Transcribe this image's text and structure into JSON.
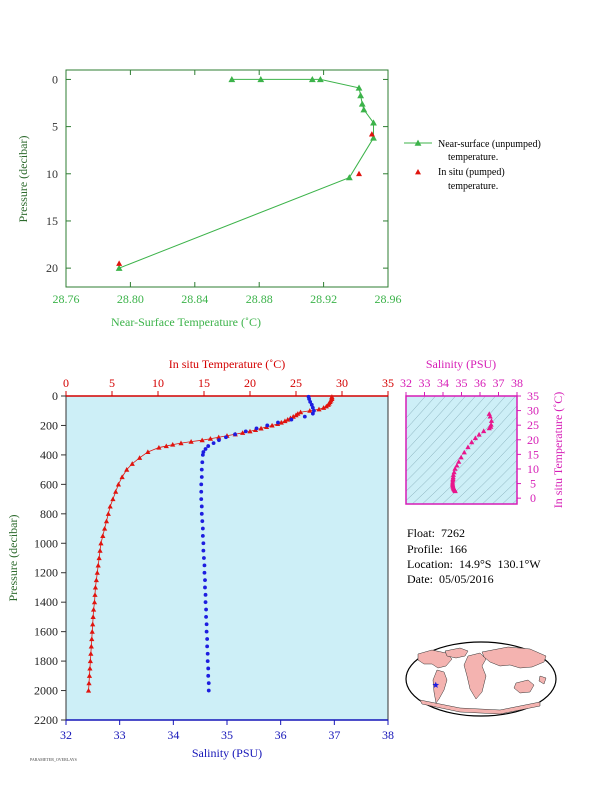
{
  "footer_text": "PARAMETER_OVERLAYS",
  "float_info": {
    "float": "Float:  7262",
    "profile": "Profile:  166",
    "location": "Location:  14.9°S  130.1°W",
    "date": "Date:  05/05/2016"
  },
  "colors": {
    "near_surface": "#3cb34a",
    "in_situ": "#e0140e",
    "salinity": "#1d1de0",
    "ts_points": "#e8158c",
    "magenta_axis": "#d61db6",
    "plot_bg": "#cdeff7",
    "axis_green": "#3cb34a",
    "axis_red": "#d40000",
    "axis_blue": "#1515b8",
    "axis_dark": "#222222"
  },
  "chart_data": [
    {
      "type": "line",
      "xlabel": "Near-Surface Temperature (˚C)",
      "ylabel": "Pressure (decibar)",
      "xlim": [
        28.76,
        28.96
      ],
      "ylim": [
        22,
        -1
      ],
      "x_ticks": [
        "28.76",
        "28.80",
        "28.84",
        "28.88",
        "28.92",
        "28.96"
      ],
      "x_tick_values": [
        28.76,
        28.8,
        28.84,
        28.88,
        28.92,
        28.96
      ],
      "y_ticks": [
        "0",
        "5",
        "10",
        "15",
        "20"
      ],
      "y_tick_values": [
        0,
        5,
        10,
        15,
        20
      ],
      "legend_position": "right",
      "series": [
        {
          "name": "Near-surface (unpumped) temperature.",
          "legend_lines": [
            "Near-surface (unpumped)",
            "temperature."
          ],
          "marker": "triangle",
          "points": [
            [
              28.863,
              0.0
            ],
            [
              28.881,
              0.0
            ],
            [
              28.913,
              0.0
            ],
            [
              28.918,
              0.0
            ],
            [
              28.942,
              0.9
            ],
            [
              28.943,
              1.7
            ],
            [
              28.944,
              2.6
            ],
            [
              28.945,
              3.2
            ],
            [
              28.951,
              4.6
            ],
            [
              28.951,
              6.2
            ],
            [
              28.936,
              10.4
            ],
            [
              28.793,
              20.0
            ]
          ]
        },
        {
          "name": "In situ (pumped) temperature.",
          "legend_lines": [
            "In situ (pumped)",
            "temperature."
          ],
          "marker": "triangle",
          "points": [
            [
              28.95,
              5.8
            ],
            [
              28.942,
              10.0
            ],
            [
              28.793,
              19.5
            ]
          ]
        }
      ]
    },
    {
      "type": "scatter",
      "top_xlabel": "In situ Temperature (˚C)",
      "bottom_xlabel": "Salinity (PSU)",
      "ylabel": "Pressure (decibar)",
      "temperature_xlim": [
        0,
        35
      ],
      "salinity_xlim": [
        32,
        38
      ],
      "ylim": [
        2200,
        0
      ],
      "temperature_ticks": [
        "0",
        "5",
        "10",
        "15",
        "20",
        "25",
        "30",
        "35"
      ],
      "temperature_tick_values": [
        0,
        5,
        10,
        15,
        20,
        25,
        30,
        35
      ],
      "salinity_ticks": [
        "32",
        "33",
        "34",
        "35",
        "36",
        "37",
        "38"
      ],
      "salinity_tick_values": [
        32,
        33,
        34,
        35,
        36,
        37,
        38
      ],
      "y_ticks": [
        "0",
        "200",
        "400",
        "600",
        "800",
        "1000",
        "1200",
        "1400",
        "1600",
        "1800",
        "2000",
        "2200"
      ],
      "y_tick_values": [
        0,
        200,
        400,
        600,
        800,
        1000,
        1200,
        1400,
        1600,
        1800,
        2000,
        2200
      ],
      "temperature": {
        "pressure": [
          5,
          10,
          20,
          30,
          40,
          50,
          60,
          70,
          80,
          90,
          100,
          110,
          120,
          130,
          140,
          150,
          160,
          170,
          180,
          190,
          200,
          210,
          220,
          230,
          240,
          250,
          260,
          270,
          280,
          290,
          300,
          310,
          320,
          330,
          340,
          350,
          380,
          420,
          460,
          500,
          550,
          600,
          650,
          700,
          750,
          800,
          850,
          900,
          950,
          1000,
          1050,
          1100,
          1150,
          1200,
          1250,
          1300,
          1350,
          1400,
          1450,
          1500,
          1550,
          1600,
          1650,
          1700,
          1750,
          1800,
          1850,
          1900,
          1950,
          2000
        ],
        "values": [
          28.9,
          28.9,
          28.9,
          28.8,
          28.7,
          28.6,
          28.5,
          28.3,
          28.0,
          27.5,
          26.5,
          25.5,
          25.2,
          25.0,
          24.7,
          24.4,
          24.1,
          23.8,
          23.4,
          23.0,
          22.4,
          21.8,
          21.2,
          20.6,
          20.0,
          19.2,
          18.4,
          17.5,
          16.6,
          15.7,
          14.8,
          13.6,
          12.5,
          11.6,
          10.9,
          10.1,
          8.9,
          8.0,
          7.2,
          6.6,
          6.1,
          5.7,
          5.4,
          5.1,
          4.8,
          4.6,
          4.4,
          4.2,
          4.0,
          3.8,
          3.7,
          3.6,
          3.5,
          3.4,
          3.3,
          3.2,
          3.15,
          3.1,
          3.0,
          2.95,
          2.9,
          2.85,
          2.8,
          2.75,
          2.7,
          2.65,
          2.6,
          2.55,
          2.5,
          2.45
        ]
      },
      "salinity": {
        "pressure": [
          5,
          20,
          40,
          60,
          80,
          100,
          120,
          140,
          160,
          180,
          200,
          220,
          240,
          260,
          280,
          300,
          320,
          340,
          360,
          380,
          400,
          450,
          500,
          550,
          600,
          650,
          700,
          750,
          800,
          850,
          900,
          950,
          1000,
          1050,
          1100,
          1150,
          1200,
          1250,
          1300,
          1350,
          1400,
          1450,
          1500,
          1550,
          1600,
          1650,
          1700,
          1750,
          1800,
          1850,
          1900,
          1950,
          2000
        ],
        "values": [
          36.52,
          36.53,
          36.55,
          36.58,
          36.6,
          36.62,
          36.6,
          36.45,
          36.2,
          35.95,
          35.75,
          35.55,
          35.35,
          35.15,
          34.98,
          34.85,
          34.75,
          34.65,
          34.6,
          34.56,
          34.55,
          34.54,
          34.53,
          34.53,
          34.52,
          34.52,
          34.52,
          34.53,
          34.53,
          34.54,
          34.55,
          34.55,
          34.56,
          34.56,
          34.57,
          34.58,
          34.58,
          34.59,
          34.59,
          34.6,
          34.6,
          34.61,
          34.61,
          34.62,
          34.62,
          34.63,
          34.63,
          34.64,
          34.64,
          34.65,
          34.65,
          34.66,
          34.66
        ]
      }
    },
    {
      "type": "scatter",
      "xlabel": "Salinity (PSU)",
      "ylabel": "In situ Temperature (˚C)",
      "xlim": [
        32,
        38
      ],
      "ylim": [
        -2,
        35
      ],
      "x_ticks": [
        "32",
        "33",
        "34",
        "35",
        "36",
        "37",
        "38"
      ],
      "x_tick_values": [
        32,
        33,
        34,
        35,
        36,
        37,
        38
      ],
      "y_ticks": [
        "0",
        "5",
        "10",
        "15",
        "20",
        "25",
        "30",
        "35"
      ],
      "y_tick_values": [
        0,
        5,
        10,
        15,
        20,
        25,
        30,
        35
      ],
      "points": [
        [
          36.5,
          28.9
        ],
        [
          36.55,
          28.0
        ],
        [
          36.62,
          26.5
        ],
        [
          36.6,
          25.2
        ],
        [
          36.58,
          24.5
        ],
        [
          36.5,
          24.0
        ],
        [
          36.2,
          23.0
        ],
        [
          35.95,
          21.8
        ],
        [
          35.75,
          20.6
        ],
        [
          35.55,
          19.2
        ],
        [
          35.35,
          17.5
        ],
        [
          35.15,
          15.7
        ],
        [
          34.98,
          14.0
        ],
        [
          34.85,
          12.5
        ],
        [
          34.75,
          11.2
        ],
        [
          34.65,
          10.1
        ],
        [
          34.6,
          8.9
        ],
        [
          34.56,
          8.0
        ],
        [
          34.55,
          7.2
        ],
        [
          34.54,
          6.6
        ],
        [
          34.53,
          6.1
        ],
        [
          34.52,
          5.4
        ],
        [
          34.52,
          4.8
        ],
        [
          34.53,
          4.4
        ],
        [
          34.54,
          4.0
        ],
        [
          34.56,
          3.6
        ],
        [
          34.58,
          3.3
        ],
        [
          34.6,
          3.1
        ],
        [
          34.62,
          2.9
        ],
        [
          34.64,
          2.7
        ],
        [
          34.66,
          2.45
        ]
      ]
    },
    {
      "type": "map",
      "marker": "star",
      "float_position": {
        "lat": -14.9,
        "lon": -130.1
      }
    }
  ]
}
